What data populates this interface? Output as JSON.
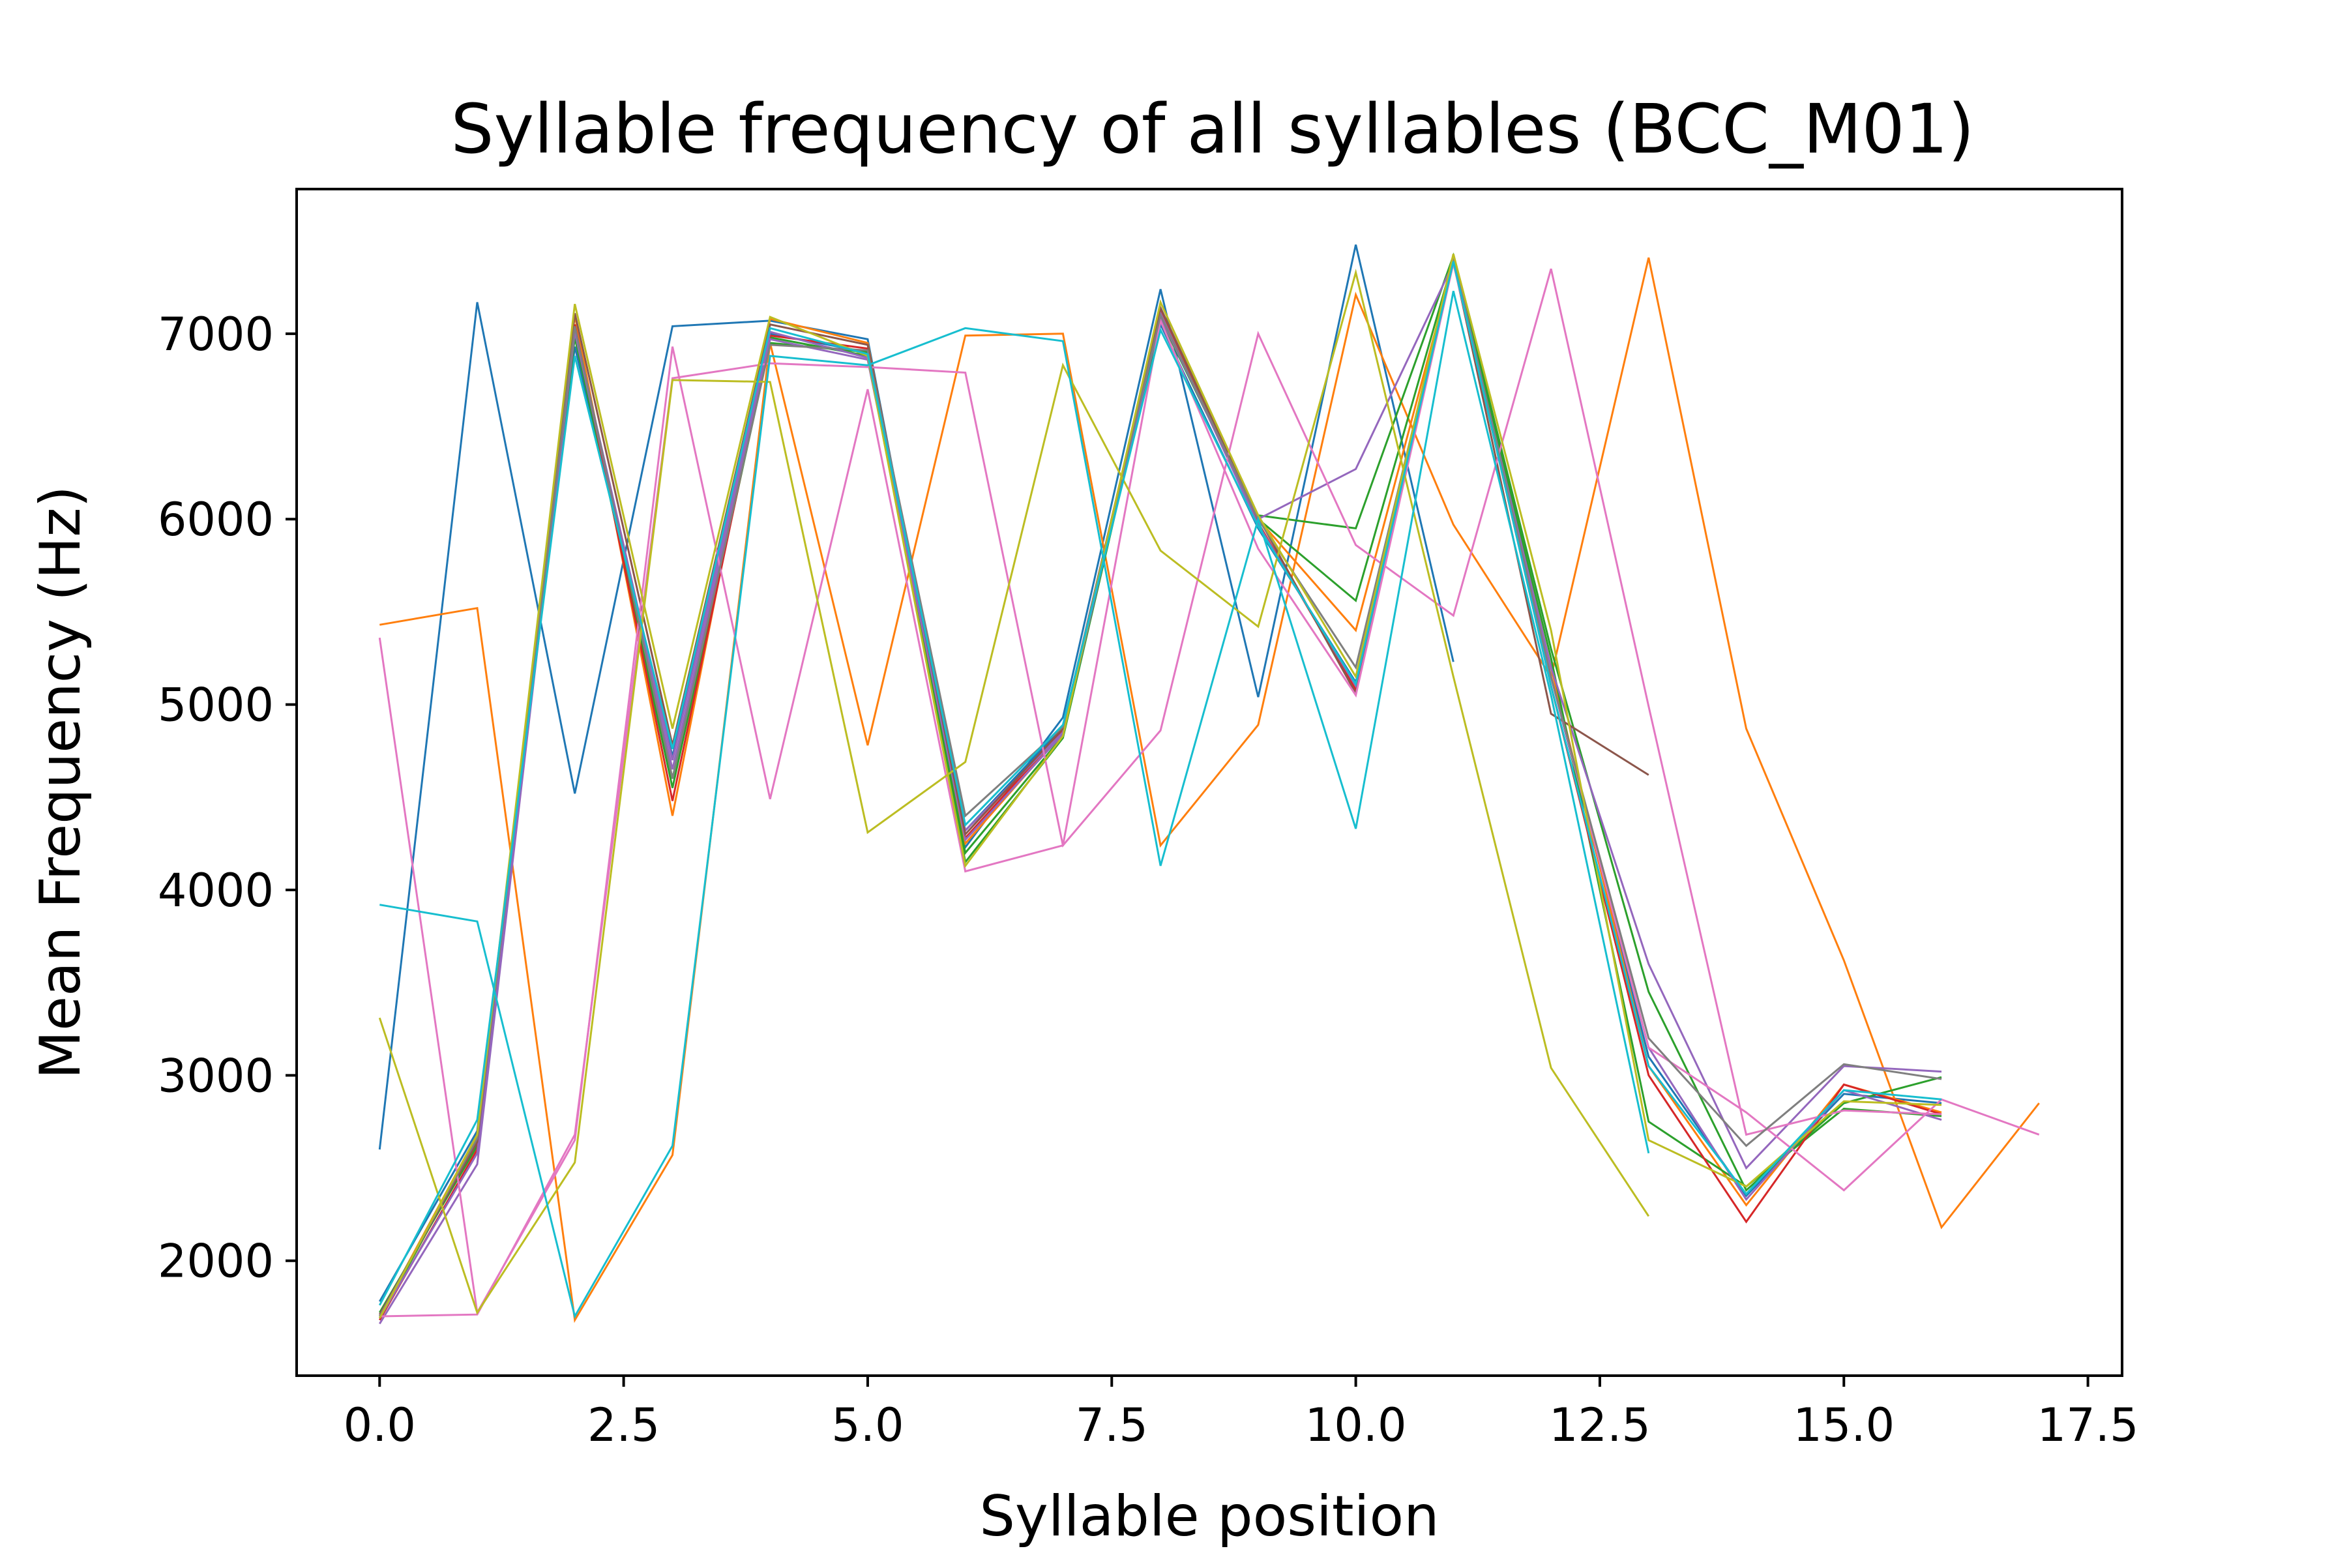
{
  "chart_data": {
    "type": "line",
    "title": "Syllable frequency of all syllables (BCC_M01)",
    "xlabel": "Syllable position",
    "ylabel": "Mean Frequency (Hz)",
    "xlim": [
      -0.85,
      17.85
    ],
    "ylim": [
      1380,
      7780
    ],
    "xticks": [
      0.0,
      2.5,
      5.0,
      7.5,
      10.0,
      12.5,
      15.0,
      17.5
    ],
    "xtick_labels": [
      "0.0",
      "2.5",
      "5.0",
      "7.5",
      "10.0",
      "12.5",
      "15.0",
      "17.5"
    ],
    "yticks": [
      2000,
      3000,
      4000,
      5000,
      6000,
      7000
    ],
    "ytick_labels": [
      "2000",
      "3000",
      "4000",
      "5000",
      "6000",
      "7000"
    ],
    "grid": false,
    "legend": "none",
    "series": [
      {
        "color": "#1f77b4",
        "values": [
          [
            0,
            1780
          ],
          [
            1,
            2700
          ],
          [
            2,
            6930
          ],
          [
            3,
            4720
          ],
          [
            4,
            7000
          ],
          [
            5,
            6900
          ],
          [
            6,
            4320
          ],
          [
            7,
            4880
          ],
          [
            8,
            7050
          ],
          [
            9,
            5950
          ],
          [
            10,
            5120
          ],
          [
            11,
            7400
          ],
          [
            12,
            5150
          ],
          [
            13,
            3100
          ],
          [
            14,
            2350
          ],
          [
            15,
            2900
          ],
          [
            16,
            2850
          ]
        ]
      },
      {
        "color": "#1f77b4",
        "values": [
          [
            0,
            2600
          ],
          [
            1,
            7170
          ],
          [
            2,
            4520
          ],
          [
            3,
            7040
          ],
          [
            4,
            7070
          ],
          [
            5,
            6970
          ],
          [
            6,
            4230
          ],
          [
            7,
            4930
          ],
          [
            8,
            7240
          ],
          [
            9,
            5040
          ],
          [
            10,
            7480
          ],
          [
            11,
            5230
          ]
        ]
      },
      {
        "color": "#ff7f0e",
        "values": [
          [
            0,
            1700
          ],
          [
            1,
            2680
          ],
          [
            2,
            7100
          ],
          [
            3,
            4400
          ],
          [
            4,
            7080
          ],
          [
            5,
            6950
          ],
          [
            6,
            4250
          ],
          [
            7,
            4850
          ],
          [
            8,
            7130
          ],
          [
            9,
            6000
          ],
          [
            10,
            5400
          ],
          [
            11,
            7380
          ],
          [
            12,
            5200
          ],
          [
            13,
            3050
          ],
          [
            14,
            2300
          ],
          [
            15,
            2950
          ],
          [
            16,
            2800
          ]
        ]
      },
      {
        "color": "#ff7f0e",
        "values": [
          [
            0,
            5430
          ],
          [
            1,
            5520
          ],
          [
            2,
            1680
          ],
          [
            3,
            2570
          ],
          [
            4,
            6950
          ],
          [
            5,
            4780
          ],
          [
            6,
            6990
          ],
          [
            7,
            7000
          ],
          [
            8,
            4240
          ],
          [
            9,
            4890
          ],
          [
            10,
            7210
          ],
          [
            11,
            5970
          ],
          [
            12,
            5150
          ],
          [
            13,
            7410
          ],
          [
            14,
            4870
          ],
          [
            15,
            3620
          ],
          [
            16,
            2180
          ],
          [
            17,
            2850
          ]
        ]
      },
      {
        "color": "#2ca02c",
        "values": [
          [
            0,
            1690
          ],
          [
            1,
            2650
          ],
          [
            2,
            7000
          ],
          [
            3,
            4550
          ],
          [
            4,
            6950
          ],
          [
            5,
            6900
          ],
          [
            6,
            4200
          ],
          [
            7,
            4830
          ],
          [
            8,
            7100
          ],
          [
            9,
            6020
          ],
          [
            10,
            5950
          ],
          [
            11,
            7420
          ],
          [
            12,
            5300
          ],
          [
            13,
            3450
          ],
          [
            14,
            2380
          ],
          [
            15,
            2850
          ],
          [
            16,
            2990
          ]
        ]
      },
      {
        "color": "#2ca02c",
        "values": [
          [
            0,
            1720
          ],
          [
            1,
            2620
          ],
          [
            2,
            6980
          ],
          [
            3,
            4600
          ],
          [
            4,
            6980
          ],
          [
            5,
            6880
          ],
          [
            6,
            4150
          ],
          [
            7,
            4820
          ],
          [
            8,
            7080
          ],
          [
            9,
            6000
          ],
          [
            10,
            5560
          ],
          [
            11,
            7400
          ],
          [
            12,
            5250
          ],
          [
            13,
            2750
          ],
          [
            14,
            2400
          ],
          [
            15,
            2820
          ],
          [
            16,
            2780
          ]
        ]
      },
      {
        "color": "#d62728",
        "values": [
          [
            0,
            1680
          ],
          [
            1,
            2600
          ],
          [
            2,
            7050
          ],
          [
            3,
            4480
          ],
          [
            4,
            6990
          ],
          [
            5,
            6920
          ],
          [
            6,
            4280
          ],
          [
            7,
            4860
          ],
          [
            8,
            7120
          ],
          [
            9,
            5980
          ],
          [
            10,
            5080
          ],
          [
            11,
            7390
          ],
          [
            12,
            5100
          ],
          [
            13,
            3000
          ],
          [
            14,
            2210
          ],
          [
            15,
            2950
          ],
          [
            16,
            2790
          ]
        ]
      },
      {
        "color": "#9467bd",
        "values": [
          [
            0,
            1660
          ],
          [
            1,
            2520
          ],
          [
            2,
            7020
          ],
          [
            3,
            4700
          ],
          [
            4,
            7010
          ],
          [
            5,
            6870
          ],
          [
            6,
            4320
          ],
          [
            7,
            4850
          ],
          [
            8,
            7110
          ],
          [
            9,
            5970
          ],
          [
            10,
            5100
          ],
          [
            11,
            7410
          ],
          [
            12,
            5150
          ],
          [
            13,
            3150
          ],
          [
            14,
            2330
          ],
          [
            15,
            2920
          ],
          [
            16,
            2760
          ]
        ]
      },
      {
        "color": "#9467bd",
        "values": [
          [
            0,
            1690
          ],
          [
            1,
            2580
          ],
          [
            2,
            7010
          ],
          [
            3,
            4650
          ],
          [
            4,
            6970
          ],
          [
            5,
            6860
          ],
          [
            6,
            4270
          ],
          [
            7,
            4840
          ],
          [
            8,
            7090
          ],
          [
            9,
            6000
          ],
          [
            10,
            6270
          ],
          [
            11,
            7380
          ],
          [
            12,
            5200
          ],
          [
            13,
            3600
          ],
          [
            14,
            2500
          ],
          [
            15,
            3050
          ],
          [
            16,
            3020
          ]
        ]
      },
      {
        "color": "#8c564b",
        "values": [
          [
            0,
            1710
          ],
          [
            1,
            2640
          ],
          [
            2,
            7110
          ],
          [
            3,
            4780
          ],
          [
            4,
            7050
          ],
          [
            5,
            6940
          ],
          [
            6,
            4300
          ],
          [
            7,
            4870
          ],
          [
            8,
            7140
          ],
          [
            9,
            6010
          ],
          [
            10,
            5060
          ],
          [
            11,
            7390
          ],
          [
            12,
            4950
          ],
          [
            13,
            4620
          ]
        ]
      },
      {
        "color": "#e377c2",
        "values": [
          [
            0,
            5360
          ],
          [
            1,
            1720
          ],
          [
            2,
            2650
          ],
          [
            3,
            6930
          ],
          [
            4,
            4490
          ],
          [
            5,
            6700
          ],
          [
            6,
            4100
          ],
          [
            7,
            4240
          ],
          [
            8,
            7070
          ],
          [
            9,
            5840
          ],
          [
            10,
            5050
          ],
          [
            11,
            7380
          ],
          [
            12,
            5150
          ],
          [
            13,
            3150
          ],
          [
            14,
            2800
          ],
          [
            15,
            2380
          ],
          [
            16,
            2870
          ],
          [
            17,
            2680
          ]
        ]
      },
      {
        "color": "#e377c2",
        "values": [
          [
            0,
            1700
          ],
          [
            1,
            1710
          ],
          [
            2,
            2680
          ],
          [
            3,
            6760
          ],
          [
            4,
            6840
          ],
          [
            5,
            6820
          ],
          [
            6,
            6790
          ],
          [
            7,
            4240
          ],
          [
            8,
            4860
          ],
          [
            9,
            7000
          ],
          [
            10,
            5860
          ],
          [
            11,
            5480
          ],
          [
            12,
            7350
          ],
          [
            13,
            4990
          ],
          [
            14,
            2680
          ],
          [
            15,
            2810
          ],
          [
            16,
            2790
          ]
        ]
      },
      {
        "color": "#7f7f7f",
        "values": [
          [
            0,
            1700
          ],
          [
            1,
            2660
          ],
          [
            2,
            7040
          ],
          [
            3,
            4600
          ],
          [
            4,
            6940
          ],
          [
            5,
            6910
          ],
          [
            6,
            4400
          ],
          [
            7,
            4880
          ],
          [
            8,
            7100
          ],
          [
            9,
            6000
          ],
          [
            10,
            5200
          ],
          [
            11,
            7400
          ],
          [
            12,
            5150
          ],
          [
            13,
            3200
          ],
          [
            14,
            2620
          ],
          [
            15,
            3060
          ],
          [
            16,
            2980
          ]
        ]
      },
      {
        "color": "#bcbd22",
        "values": [
          [
            0,
            3310
          ],
          [
            1,
            1720
          ],
          [
            2,
            2530
          ],
          [
            3,
            6750
          ],
          [
            4,
            6740
          ],
          [
            5,
            4310
          ],
          [
            6,
            4690
          ],
          [
            7,
            6830
          ],
          [
            8,
            5830
          ],
          [
            9,
            5420
          ],
          [
            10,
            7330
          ],
          [
            11,
            5150
          ],
          [
            12,
            3040
          ],
          [
            13,
            2240
          ]
        ]
      },
      {
        "color": "#bcbd22",
        "values": [
          [
            0,
            1690
          ],
          [
            1,
            2680
          ],
          [
            2,
            7160
          ],
          [
            3,
            4870
          ],
          [
            4,
            7090
          ],
          [
            5,
            6880
          ],
          [
            6,
            4130
          ],
          [
            7,
            4830
          ],
          [
            8,
            7170
          ],
          [
            9,
            6020
          ],
          [
            10,
            5150
          ],
          [
            11,
            7430
          ],
          [
            12,
            5400
          ],
          [
            13,
            2650
          ],
          [
            14,
            2400
          ],
          [
            15,
            2860
          ],
          [
            16,
            2840
          ]
        ]
      },
      {
        "color": "#17becf",
        "values": [
          [
            0,
            3920
          ],
          [
            1,
            3830
          ],
          [
            2,
            1700
          ],
          [
            3,
            2620
          ],
          [
            4,
            6880
          ],
          [
            5,
            6830
          ],
          [
            6,
            7030
          ],
          [
            7,
            6960
          ],
          [
            8,
            4130
          ],
          [
            9,
            6000
          ],
          [
            10,
            4330
          ],
          [
            11,
            7230
          ],
          [
            12,
            5050
          ],
          [
            13,
            2580
          ]
        ]
      },
      {
        "color": "#17becf",
        "values": [
          [
            0,
            1760
          ],
          [
            1,
            2760
          ],
          [
            2,
            6880
          ],
          [
            3,
            4760
          ],
          [
            4,
            7030
          ],
          [
            5,
            6890
          ],
          [
            6,
            4350
          ],
          [
            7,
            4890
          ],
          [
            8,
            7020
          ],
          [
            9,
            5960
          ],
          [
            10,
            5110
          ],
          [
            11,
            7390
          ],
          [
            12,
            5100
          ],
          [
            13,
            3050
          ],
          [
            14,
            2360
          ],
          [
            15,
            2920
          ],
          [
            16,
            2870
          ]
        ]
      }
    ]
  }
}
